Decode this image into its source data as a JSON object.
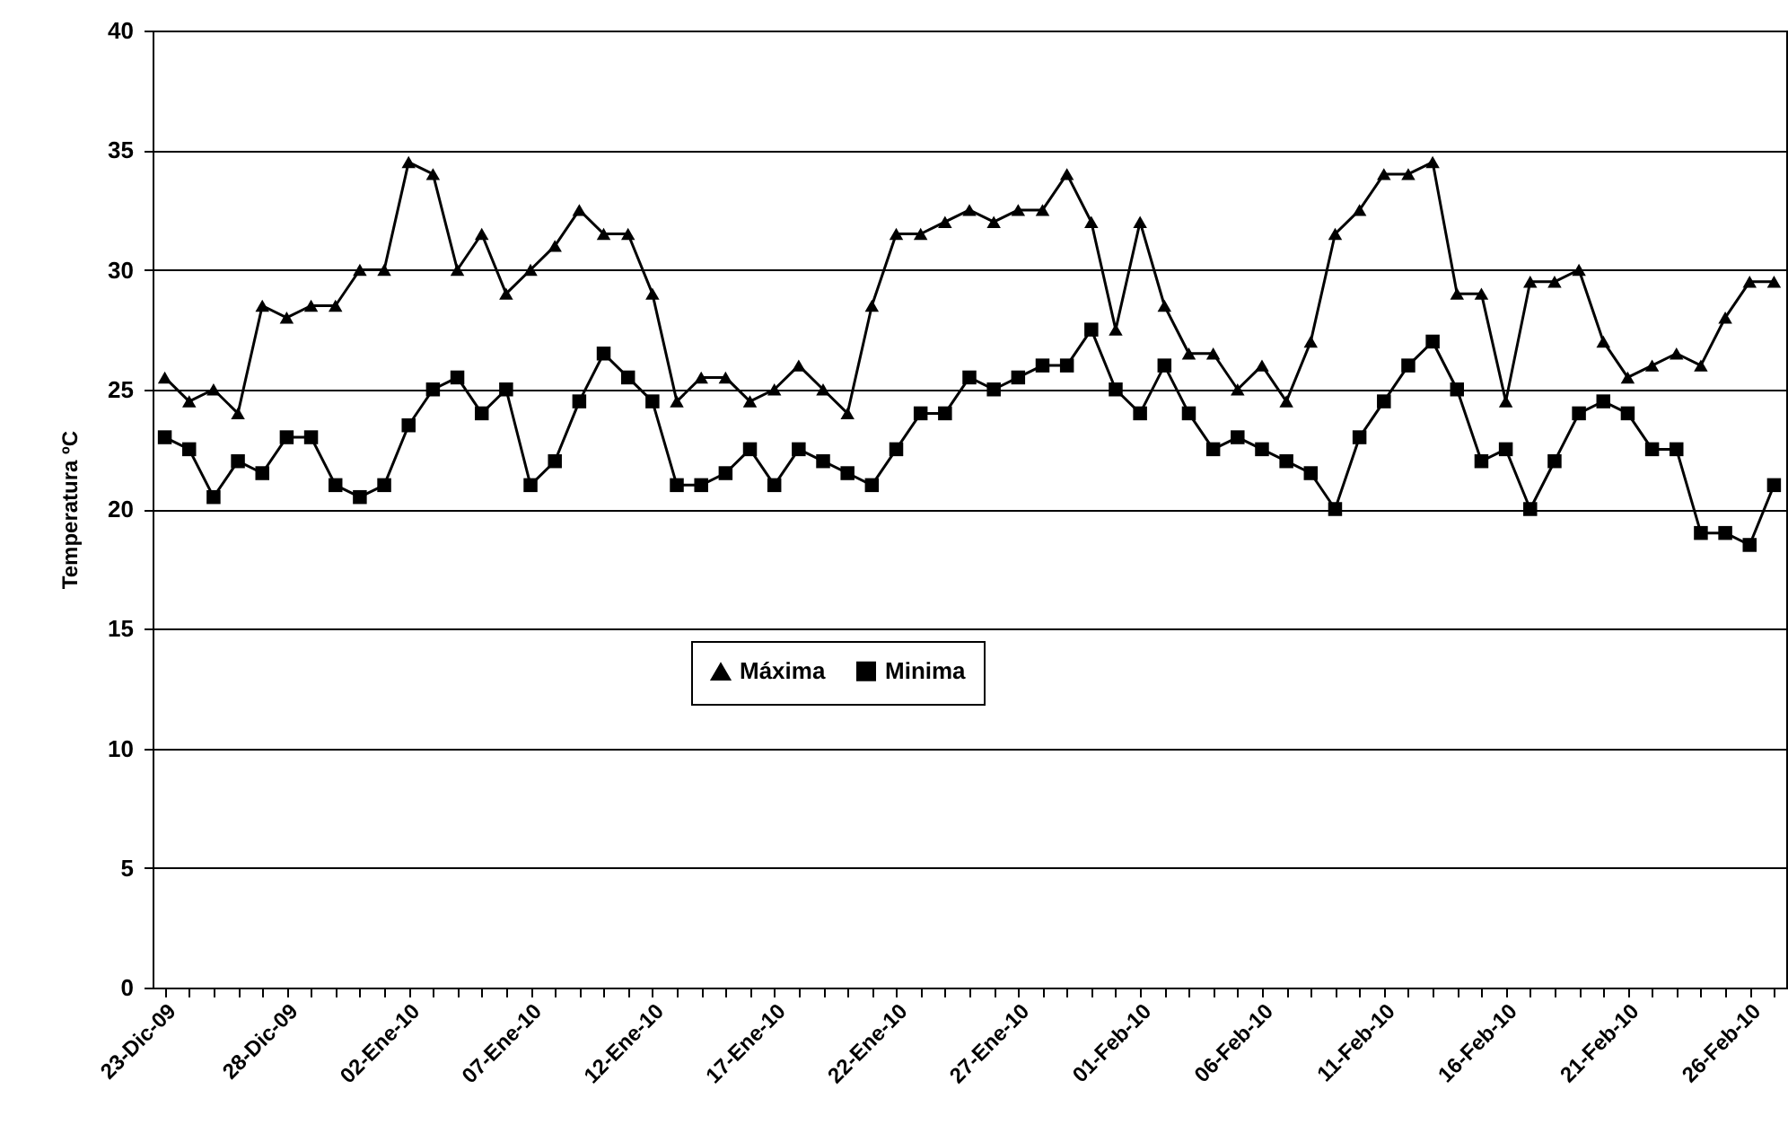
{
  "chart_data": {
    "type": "line",
    "ylabel": "Temperatura ºC",
    "categories": [
      "23-Dic-09",
      null,
      null,
      null,
      null,
      "28-Dic-09",
      null,
      null,
      null,
      null,
      "02-Ene-10",
      null,
      null,
      null,
      null,
      "07-Ene-10",
      null,
      null,
      null,
      null,
      "12-Ene-10",
      null,
      null,
      null,
      null,
      "17-Ene-10",
      null,
      null,
      null,
      null,
      "22-Ene-10",
      null,
      null,
      null,
      null,
      "27-Ene-10",
      null,
      null,
      null,
      null,
      "01-Feb-10",
      null,
      null,
      null,
      null,
      "06-Feb-10",
      null,
      null,
      null,
      null,
      "11-Feb-10",
      null,
      null,
      null,
      null,
      "16-Feb-10",
      null,
      null,
      null,
      null,
      "21-Feb-10",
      null,
      null,
      null,
      null,
      "26-Feb-10",
      null
    ],
    "series": [
      {
        "name": "Máxima",
        "color": "#000000",
        "marker": "triangle",
        "values": [
          25.5,
          24.5,
          25,
          24,
          28.5,
          28,
          28.5,
          28.5,
          30,
          30,
          34.5,
          34,
          30,
          31.5,
          29,
          30,
          31,
          32.5,
          31.5,
          31.5,
          29,
          24.5,
          25.5,
          25.5,
          24.5,
          25,
          26,
          25,
          24,
          28.5,
          31.5,
          31.5,
          32,
          32.5,
          32,
          32.5,
          32.5,
          34,
          32,
          27.5,
          32,
          28.5,
          26.5,
          26.5,
          25,
          26,
          24.5,
          27,
          31.5,
          32.5,
          34,
          34,
          34.5,
          29,
          29,
          24.5,
          29.5,
          29.5,
          30,
          27,
          25.5,
          26,
          26.5,
          26,
          28,
          29.5,
          29.5
        ]
      },
      {
        "name": "Minima",
        "color": "#000000",
        "marker": "square",
        "values": [
          23,
          22.5,
          20.5,
          22,
          21.5,
          23,
          23,
          21,
          20.5,
          21,
          23.5,
          25,
          25.5,
          24,
          25,
          21,
          22,
          24.5,
          26.5,
          25.5,
          24.5,
          21,
          21,
          21.5,
          22.5,
          21,
          22.5,
          22,
          21.5,
          21,
          22.5,
          24,
          24,
          25.5,
          25,
          25.5,
          26,
          26,
          27.5,
          25,
          24,
          26,
          24,
          22.5,
          23,
          22.5,
          22,
          21.5,
          20,
          23,
          24.5,
          26,
          27,
          25,
          22,
          22.5,
          20,
          22,
          24,
          24.5,
          24,
          22.5,
          22.5,
          19,
          19,
          18.5,
          21
        ]
      }
    ],
    "ylim": [
      0,
      40
    ],
    "yticks": [
      0,
      5,
      10,
      15,
      20,
      25,
      30,
      35,
      40
    ],
    "grid": "y",
    "legend": "center"
  }
}
